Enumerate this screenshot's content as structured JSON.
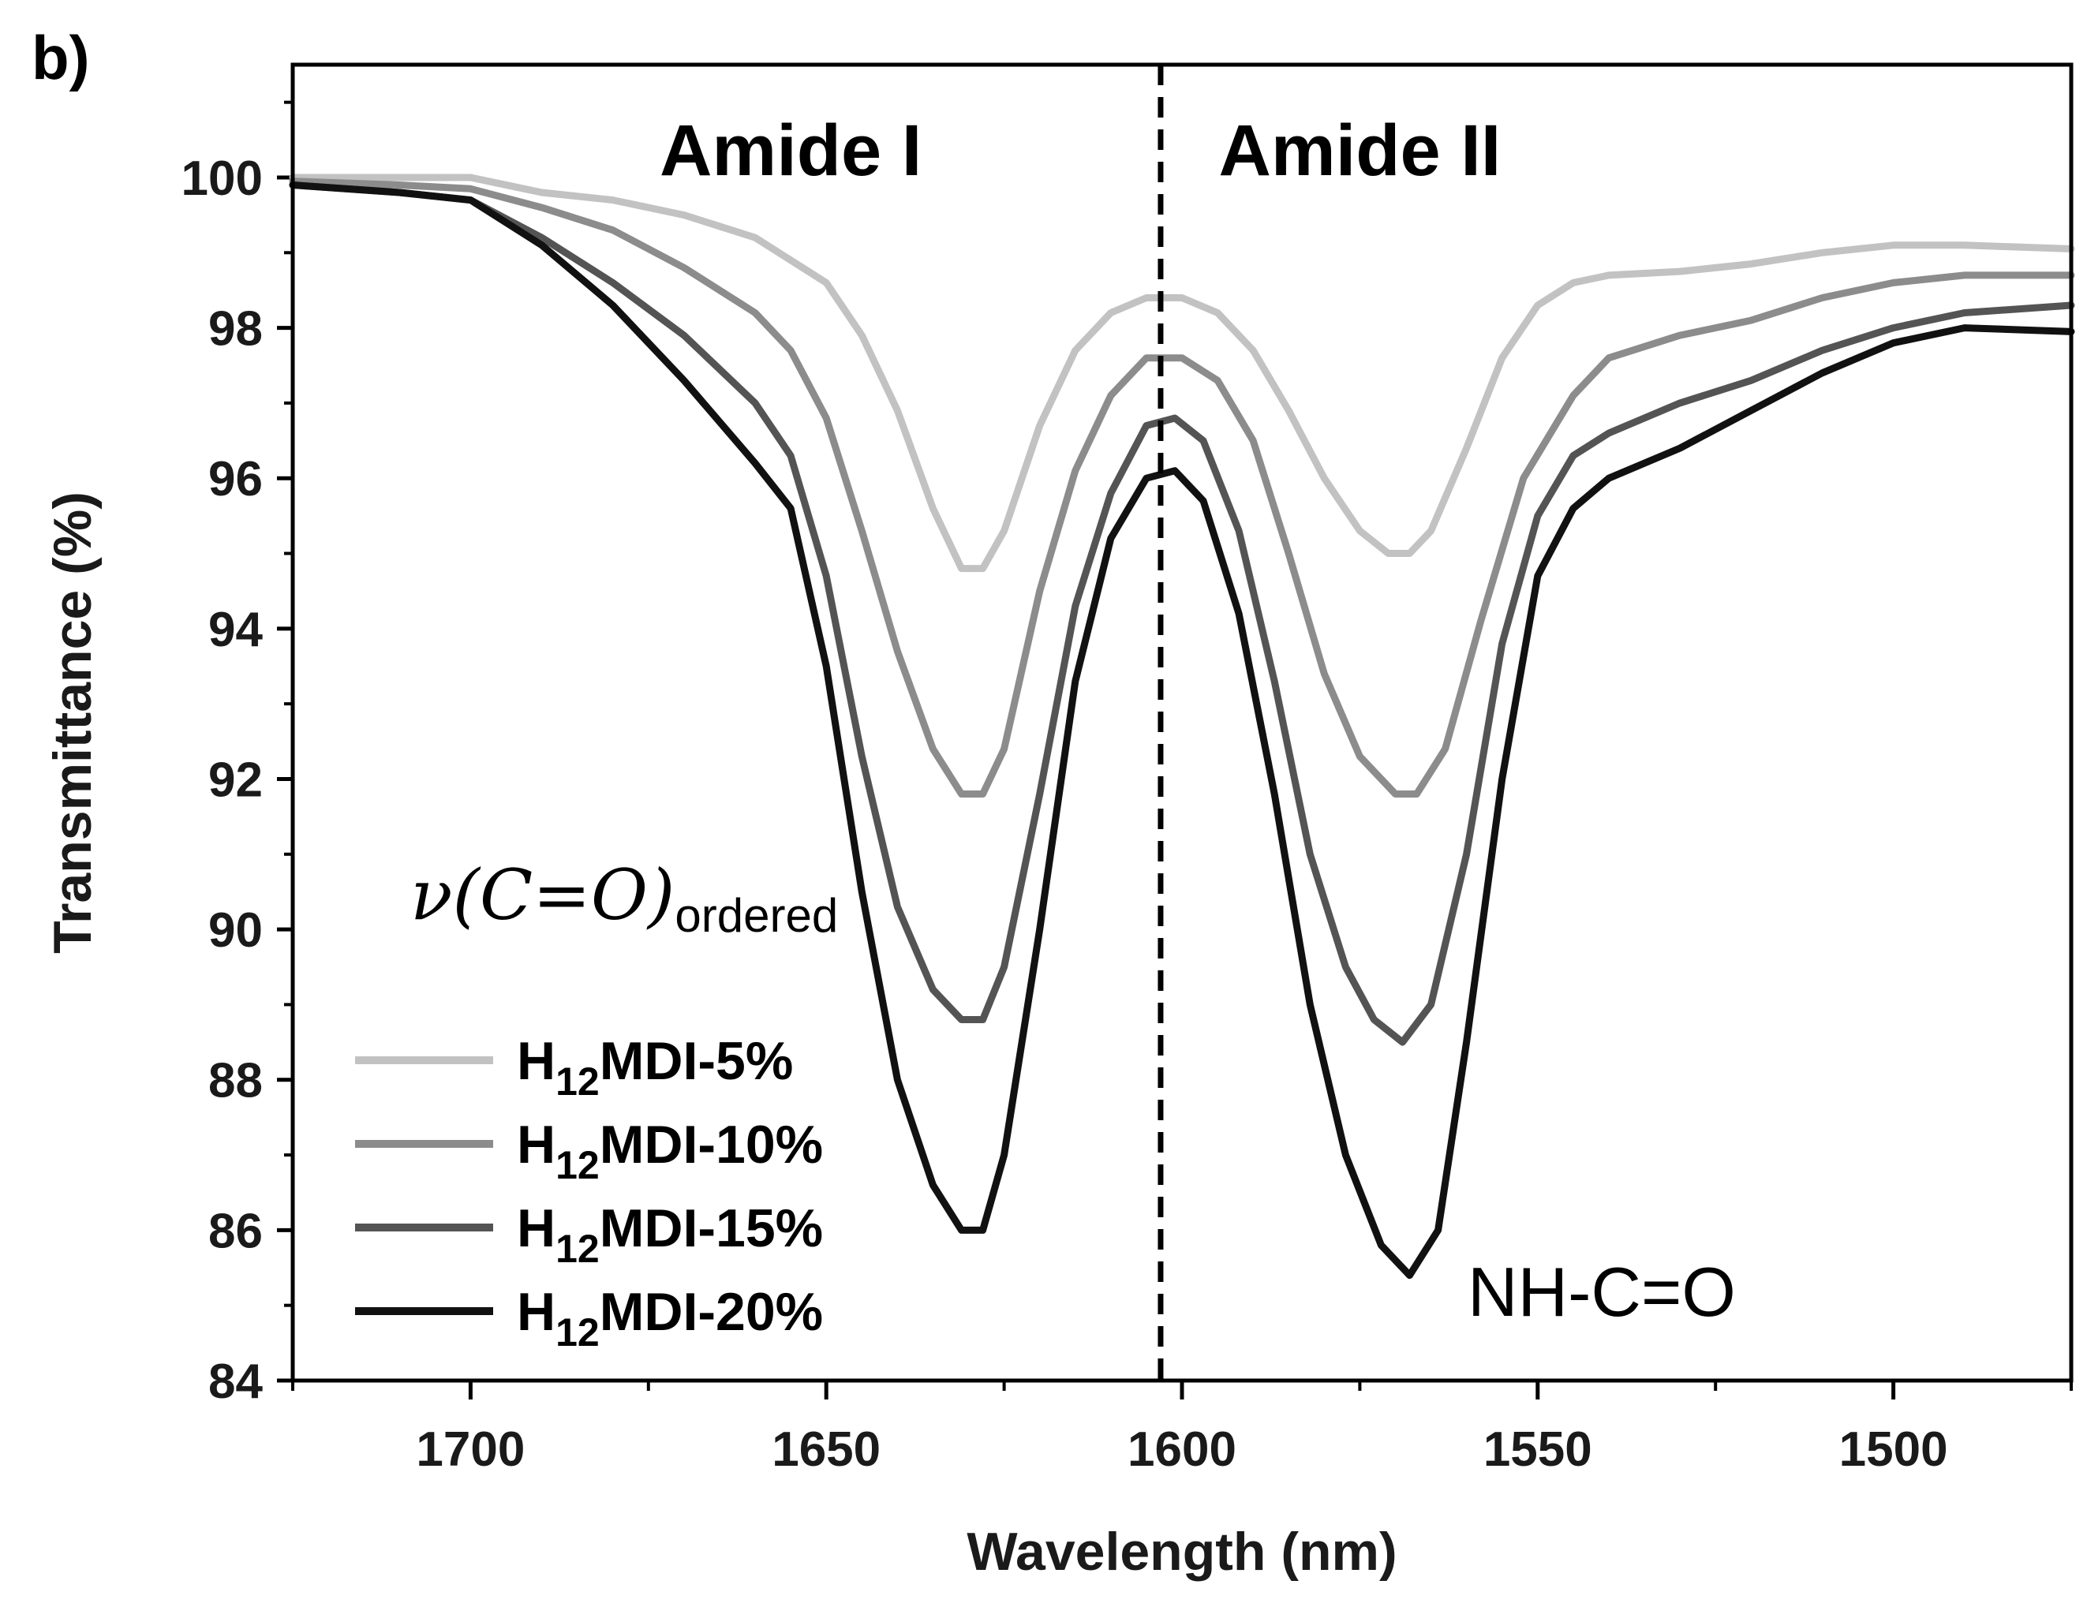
{
  "chart_data": {
    "type": "line",
    "panel_label": "b)",
    "xlabel": "Wavelength (nm)",
    "ylabel": "Transmittance (%)",
    "xlim": [
      1725,
      1475
    ],
    "ylim": [
      84,
      101.5
    ],
    "x_ticks": [
      1700,
      1650,
      1600,
      1550,
      1500
    ],
    "y_ticks": [
      84,
      86,
      88,
      90,
      92,
      94,
      96,
      98,
      100
    ],
    "divider_x": 1603,
    "regions": [
      {
        "label": "Amide I",
        "x": 1655
      },
      {
        "label": "Amide II",
        "x": 1575
      }
    ],
    "annotations": [
      {
        "main": "ν(C=O)",
        "sub": "ordered"
      },
      {
        "main": "NH-C=O"
      }
    ],
    "legend": {
      "placement": "bottom-left"
    },
    "series": [
      {
        "name": "H12MDI-5%",
        "label_prefix": "H",
        "label_sub": "12",
        "label_suffix": "MDI-5%",
        "color": "#c2c2c2",
        "points": [
          [
            1725,
            100.0
          ],
          [
            1710,
            100.0
          ],
          [
            1700,
            100.0
          ],
          [
            1690,
            99.8
          ],
          [
            1680,
            99.7
          ],
          [
            1670,
            99.5
          ],
          [
            1660,
            99.2
          ],
          [
            1655,
            98.9
          ],
          [
            1650,
            98.6
          ],
          [
            1645,
            97.9
          ],
          [
            1640,
            96.9
          ],
          [
            1635,
            95.6
          ],
          [
            1631,
            94.8
          ],
          [
            1628,
            94.8
          ],
          [
            1625,
            95.3
          ],
          [
            1620,
            96.7
          ],
          [
            1615,
            97.7
          ],
          [
            1610,
            98.2
          ],
          [
            1605,
            98.4
          ],
          [
            1600,
            98.4
          ],
          [
            1595,
            98.2
          ],
          [
            1590,
            97.7
          ],
          [
            1585,
            96.9
          ],
          [
            1580,
            96.0
          ],
          [
            1575,
            95.3
          ],
          [
            1571,
            95.0
          ],
          [
            1568,
            95.0
          ],
          [
            1565,
            95.3
          ],
          [
            1560,
            96.4
          ],
          [
            1555,
            97.6
          ],
          [
            1550,
            98.3
          ],
          [
            1545,
            98.6
          ],
          [
            1540,
            98.7
          ],
          [
            1530,
            98.75
          ],
          [
            1520,
            98.85
          ],
          [
            1510,
            99.0
          ],
          [
            1500,
            99.1
          ],
          [
            1490,
            99.1
          ],
          [
            1475,
            99.05
          ]
        ]
      },
      {
        "name": "H12MDI-10%",
        "label_prefix": "H",
        "label_sub": "12",
        "label_suffix": "MDI-10%",
        "color": "#8c8c8c",
        "points": [
          [
            1725,
            99.95
          ],
          [
            1710,
            99.9
          ],
          [
            1700,
            99.85
          ],
          [
            1690,
            99.6
          ],
          [
            1680,
            99.3
          ],
          [
            1670,
            98.8
          ],
          [
            1660,
            98.2
          ],
          [
            1655,
            97.7
          ],
          [
            1650,
            96.8
          ],
          [
            1645,
            95.3
          ],
          [
            1640,
            93.7
          ],
          [
            1635,
            92.4
          ],
          [
            1631,
            91.8
          ],
          [
            1628,
            91.8
          ],
          [
            1625,
            92.4
          ],
          [
            1620,
            94.5
          ],
          [
            1615,
            96.1
          ],
          [
            1610,
            97.1
          ],
          [
            1605,
            97.6
          ],
          [
            1600,
            97.6
          ],
          [
            1595,
            97.3
          ],
          [
            1590,
            96.5
          ],
          [
            1585,
            95.0
          ],
          [
            1580,
            93.4
          ],
          [
            1575,
            92.3
          ],
          [
            1570,
            91.8
          ],
          [
            1567,
            91.8
          ],
          [
            1563,
            92.4
          ],
          [
            1558,
            94.1
          ],
          [
            1552,
            96.0
          ],
          [
            1545,
            97.1
          ],
          [
            1540,
            97.6
          ],
          [
            1530,
            97.9
          ],
          [
            1520,
            98.1
          ],
          [
            1510,
            98.4
          ],
          [
            1500,
            98.6
          ],
          [
            1490,
            98.7
          ],
          [
            1475,
            98.7
          ]
        ]
      },
      {
        "name": "H12MDI-15%",
        "label_prefix": "H",
        "label_sub": "12",
        "label_suffix": "MDI-15%",
        "color": "#545454",
        "points": [
          [
            1725,
            99.9
          ],
          [
            1710,
            99.8
          ],
          [
            1700,
            99.7
          ],
          [
            1690,
            99.2
          ],
          [
            1680,
            98.6
          ],
          [
            1670,
            97.9
          ],
          [
            1660,
            97.0
          ],
          [
            1655,
            96.3
          ],
          [
            1650,
            94.7
          ],
          [
            1645,
            92.3
          ],
          [
            1640,
            90.3
          ],
          [
            1635,
            89.2
          ],
          [
            1631,
            88.8
          ],
          [
            1628,
            88.8
          ],
          [
            1625,
            89.5
          ],
          [
            1620,
            91.8
          ],
          [
            1615,
            94.3
          ],
          [
            1610,
            95.8
          ],
          [
            1605,
            96.7
          ],
          [
            1601,
            96.8
          ],
          [
            1597,
            96.5
          ],
          [
            1592,
            95.3
          ],
          [
            1587,
            93.3
          ],
          [
            1582,
            91.0
          ],
          [
            1577,
            89.5
          ],
          [
            1573,
            88.8
          ],
          [
            1569,
            88.5
          ],
          [
            1565,
            89.0
          ],
          [
            1560,
            91.0
          ],
          [
            1555,
            93.8
          ],
          [
            1550,
            95.5
          ],
          [
            1545,
            96.3
          ],
          [
            1540,
            96.6
          ],
          [
            1530,
            97.0
          ],
          [
            1520,
            97.3
          ],
          [
            1510,
            97.7
          ],
          [
            1500,
            98.0
          ],
          [
            1490,
            98.2
          ],
          [
            1475,
            98.3
          ]
        ]
      },
      {
        "name": "H12MDI-20%",
        "label_prefix": "H",
        "label_sub": "12",
        "label_suffix": "MDI-20%",
        "color": "#111111",
        "points": [
          [
            1725,
            99.9
          ],
          [
            1710,
            99.8
          ],
          [
            1700,
            99.7
          ],
          [
            1690,
            99.1
          ],
          [
            1680,
            98.3
          ],
          [
            1670,
            97.3
          ],
          [
            1660,
            96.2
          ],
          [
            1655,
            95.6
          ],
          [
            1650,
            93.5
          ],
          [
            1645,
            90.5
          ],
          [
            1640,
            88.0
          ],
          [
            1635,
            86.6
          ],
          [
            1631,
            86.0
          ],
          [
            1628,
            86.0
          ],
          [
            1625,
            87.0
          ],
          [
            1620,
            90.0
          ],
          [
            1615,
            93.3
          ],
          [
            1610,
            95.2
          ],
          [
            1605,
            96.0
          ],
          [
            1601,
            96.1
          ],
          [
            1597,
            95.7
          ],
          [
            1592,
            94.2
          ],
          [
            1587,
            91.8
          ],
          [
            1582,
            89.0
          ],
          [
            1577,
            87.0
          ],
          [
            1572,
            85.8
          ],
          [
            1568,
            85.4
          ],
          [
            1564,
            86.0
          ],
          [
            1560,
            88.5
          ],
          [
            1555,
            92.0
          ],
          [
            1550,
            94.7
          ],
          [
            1545,
            95.6
          ],
          [
            1540,
            96.0
          ],
          [
            1530,
            96.4
          ],
          [
            1520,
            96.9
          ],
          [
            1510,
            97.4
          ],
          [
            1500,
            97.8
          ],
          [
            1490,
            98.0
          ],
          [
            1475,
            97.95
          ]
        ]
      }
    ]
  }
}
